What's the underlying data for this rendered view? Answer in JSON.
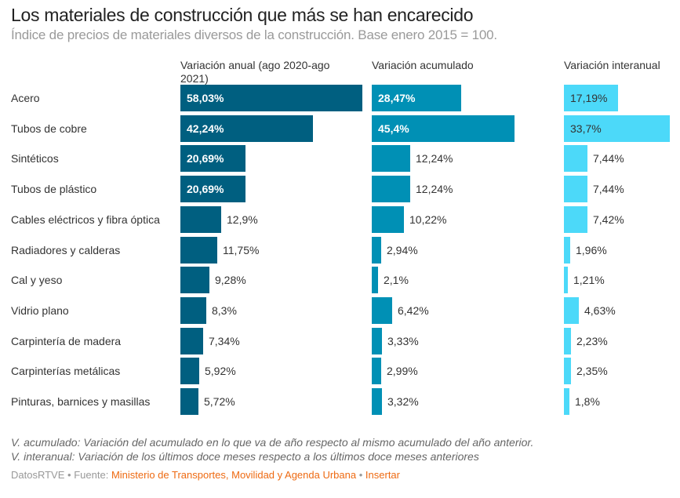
{
  "title": "Los materiales de construcción que más se han encarecido",
  "subtitle": "Índice de precios de materiales diversos de la construcción. Base enero 2015 = 100.",
  "notes": [
    "V. acumulado: Variación del acumulado en lo que va de año respecto al mismo acumulado del año anterior.",
    "V. interanual: Variación de los últimos doce meses respecto a los últimos doce meses anteriores"
  ],
  "credits": {
    "brand": "DatosRTVE",
    "separator": "•",
    "source_prefix": "Fuente:",
    "source_link": "Ministerio de Transportes, Movilidad y Agenda Urbana",
    "embed_link": "Insertar"
  },
  "chart_data": {
    "type": "bar",
    "orientation": "horizontal",
    "title": "Los materiales de construcción que más se han encarecido",
    "subtitle": "Índice de precios de materiales diversos de la construcción. Base enero 2015 = 100.",
    "categories": [
      "Acero",
      "Tubos de cobre",
      "Sintéticos",
      "Tubos de plástico",
      "Cables eléctricos y fibra óptica",
      "Radiadores y calderas",
      "Cal y yeso",
      "Vidrio plano",
      "Carpintería de madera",
      "Carpinterías metálicas",
      "Pinturas, barnices y masillas"
    ],
    "series": [
      {
        "name": "Variación anual (ago 2020-ago 2021)",
        "color": "#005f80",
        "label_color_inside": "#ffffff",
        "values": [
          58.03,
          42.24,
          20.69,
          20.69,
          12.9,
          11.75,
          9.28,
          8.3,
          7.34,
          5.92,
          5.72
        ],
        "labels": [
          "58,03%",
          "42,24%",
          "20,69%",
          "20,69%",
          "12,9%",
          "11,75%",
          "9,28%",
          "8,3%",
          "7,34%",
          "5,92%",
          "5,72%"
        ]
      },
      {
        "name": "Variación acumulado",
        "color": "#0090b5",
        "label_color_inside": "#ffffff",
        "values": [
          28.47,
          45.4,
          12.24,
          12.24,
          10.22,
          2.94,
          2.1,
          6.42,
          3.33,
          2.99,
          3.32
        ],
        "labels": [
          "28,47%",
          "45,4%",
          "12,24%",
          "12,24%",
          "10,22%",
          "2,94%",
          "2,1%",
          "6,42%",
          "3,33%",
          "2,99%",
          "3,32%"
        ]
      },
      {
        "name": "Variación interanual",
        "color": "#4cd9f9",
        "label_color_inside": "#333333",
        "values": [
          17.19,
          33.7,
          7.44,
          7.44,
          7.42,
          1.96,
          1.21,
          4.63,
          2.23,
          2.35,
          1.8
        ],
        "labels": [
          "17,19%",
          "33,7%",
          "7,44%",
          "7,44%",
          "7,42%",
          "1,96%",
          "1,21%",
          "4,63%",
          "2,23%",
          "2,35%",
          "1,8%"
        ]
      }
    ],
    "unit": "%",
    "inside_label_threshold": 17,
    "grid": false,
    "legend": "none"
  }
}
